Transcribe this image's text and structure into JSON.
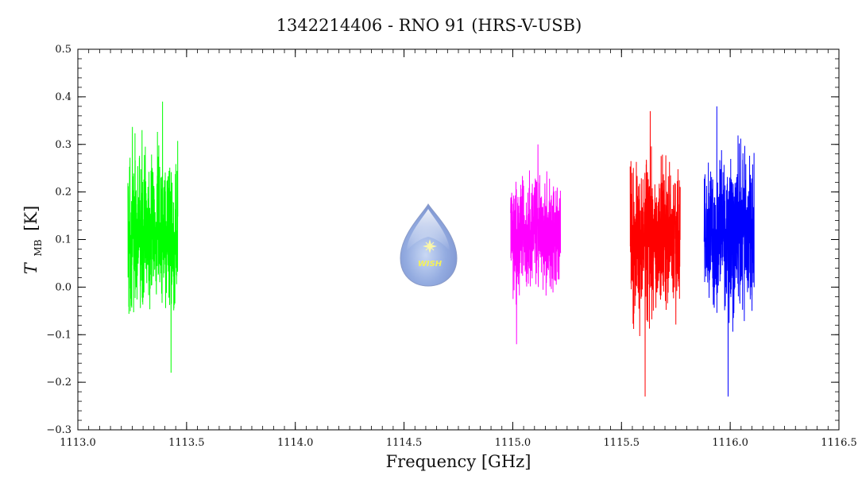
{
  "chart_data": {
    "type": "line",
    "title": "1342214406 - RNO 91 (HRS-V-USB)",
    "xlabel": "Frequency [GHz]",
    "ylabel_main": "T",
    "ylabel_sub": "MB",
    "ylabel_unit": "[K]",
    "xlim": [
      1113.0,
      1116.5
    ],
    "ylim": [
      -0.3,
      0.5
    ],
    "x_ticks": [
      "1113.0",
      "1113.5",
      "1114.0",
      "1114.5",
      "1115.0",
      "1115.5",
      "1116.0",
      "1116.5"
    ],
    "y_ticks": [
      "−0.3",
      "−0.2",
      "−0.1",
      "0.0",
      "0.1",
      "0.2",
      "0.3",
      "0.4",
      "0.5"
    ],
    "grid": false,
    "logo_text": "WISH",
    "series": [
      {
        "color": "#00ff00",
        "x_range": [
          1113.23,
          1113.46
        ],
        "mean": 0.11,
        "min": -0.18,
        "max": 0.39
      },
      {
        "color": "#ff00ff",
        "x_range": [
          1114.99,
          1115.22
        ],
        "mean": 0.11,
        "min": -0.12,
        "max": 0.3
      },
      {
        "color": "#ff0000",
        "x_range": [
          1115.54,
          1115.77
        ],
        "mean": 0.1,
        "min": -0.23,
        "max": 0.37
      },
      {
        "color": "#0000ff",
        "x_range": [
          1115.88,
          1116.11
        ],
        "mean": 0.11,
        "min": -0.23,
        "max": 0.38
      }
    ]
  }
}
